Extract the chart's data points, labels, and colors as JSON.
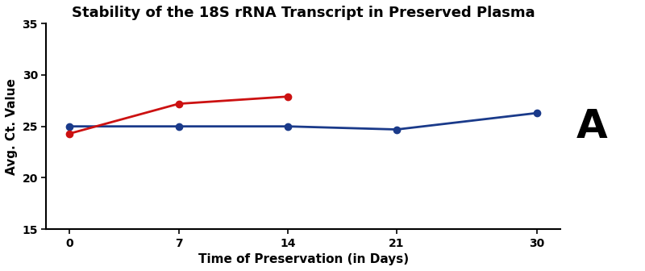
{
  "title": "Stability of the 18S rRNA Transcript in Preserved Plasma",
  "xlabel": "Time of Preservation (in Days)",
  "ylabel": "Avg. Ct. Value",
  "x_values": [
    0,
    7,
    14,
    21,
    30
  ],
  "blue_line": [
    25.0,
    25.0,
    25.0,
    24.7,
    26.3
  ],
  "red_line": [
    24.3,
    27.2,
    27.9,
    null,
    null
  ],
  "blue_color": "#1a3a8a",
  "red_color": "#cc1111",
  "ylim": [
    15,
    35
  ],
  "yticks": [
    15,
    20,
    25,
    30,
    35
  ],
  "xticks": [
    0,
    7,
    14,
    21,
    30
  ],
  "label_A": "A",
  "title_fontsize": 13,
  "axis_fontsize": 11,
  "tick_fontsize": 10,
  "label_A_fontsize": 36,
  "marker_size": 6,
  "line_width": 2.0,
  "plot_bg_color": "#ffffff",
  "outer_bg_color": "#ffffff"
}
